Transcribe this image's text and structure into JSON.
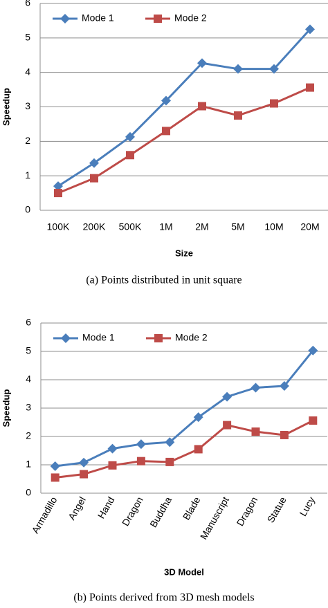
{
  "chart_data": [
    {
      "type": "line",
      "caption": "(a) Points distributed in unit square",
      "xlabel": "Size",
      "ylabel": "Speedup",
      "categories": [
        "100K",
        "200K",
        "500K",
        "1M",
        "2M",
        "5M",
        "10M",
        "20M"
      ],
      "series": [
        {
          "name": "Mode 1",
          "color": "#4a7ebb",
          "marker": "diamond",
          "values": [
            0.7,
            1.37,
            2.13,
            3.18,
            4.27,
            4.1,
            4.1,
            5.25
          ]
        },
        {
          "name": "Mode 2",
          "color": "#be4b48",
          "marker": "square",
          "values": [
            0.5,
            0.93,
            1.6,
            2.3,
            3.02,
            2.75,
            3.1,
            3.56
          ]
        }
      ],
      "ylim": [
        0,
        6
      ],
      "yticks": [
        0,
        1,
        2,
        3,
        4,
        5,
        6
      ],
      "grid": true,
      "legend": "top-left"
    },
    {
      "type": "line",
      "caption": "(b) Points derived from 3D mesh models",
      "xlabel": "3D Model",
      "ylabel": "Speedup",
      "categories": [
        "Armadillo",
        "Angel",
        "Hand",
        "Dragon",
        "Buddha",
        "Blade",
        "Manuscript",
        "Dragon",
        "Statue",
        "Lucy"
      ],
      "series": [
        {
          "name": "Mode 1",
          "color": "#4a7ebb",
          "marker": "diamond",
          "values": [
            0.95,
            1.08,
            1.57,
            1.73,
            1.8,
            2.68,
            3.4,
            3.72,
            3.78,
            5.03
          ]
        },
        {
          "name": "Mode 2",
          "color": "#be4b48",
          "marker": "square",
          "values": [
            0.55,
            0.67,
            0.98,
            1.13,
            1.1,
            1.55,
            2.4,
            2.17,
            2.05,
            2.56
          ]
        }
      ],
      "ylim": [
        0,
        6
      ],
      "yticks": [
        0,
        1,
        2,
        3,
        4,
        5,
        6
      ],
      "grid": true,
      "legend": "top-left"
    }
  ]
}
